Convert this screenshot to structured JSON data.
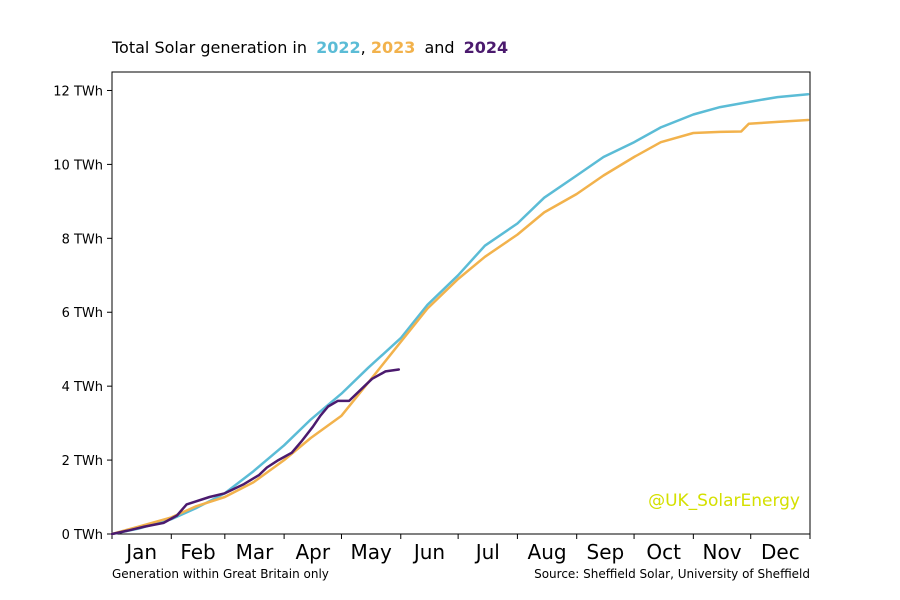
{
  "title": {
    "prefix": "Total Solar generation in",
    "year1": "2022",
    "sep1": ",",
    "year2": "2023",
    "sep2": "and",
    "year3": "2024"
  },
  "footer": {
    "left": "Generation within Great Britain only",
    "right": "Source: Sheffield Solar, University of Sheffield"
  },
  "watermark": "@UK_SolarEnergy",
  "colors": {
    "2022": "#5bbcd6",
    "2023": "#f2b24c",
    "2024": "#4b1a6e",
    "watermark": "#d4e000"
  },
  "chart_data": {
    "type": "line",
    "x_unit": "day of year",
    "xlim": [
      1,
      366
    ],
    "ylim": [
      0,
      12.5
    ],
    "y_ticks": [
      0,
      2,
      4,
      6,
      8,
      10,
      12
    ],
    "y_tick_labels": [
      "0 TWh",
      "2 TWh",
      "4 TWh",
      "6 TWh",
      "8 TWh",
      "10 TWh",
      "12 TWh"
    ],
    "x_tick_labels": [
      "Jan",
      "Feb",
      "Mar",
      "Apr",
      "May",
      "Jun",
      "Jul",
      "Aug",
      "Sep",
      "Oct",
      "Nov",
      "Dec"
    ],
    "series": [
      {
        "name": "2022",
        "x": [
          1,
          15,
          32,
          45,
          60,
          75,
          91,
          105,
          121,
          135,
          152,
          166,
          182,
          196,
          213,
          227,
          244,
          258,
          274,
          288,
          305,
          319,
          335,
          349,
          365
        ],
        "y": [
          0,
          0.15,
          0.4,
          0.7,
          1.1,
          1.7,
          2.4,
          3.1,
          3.8,
          4.5,
          5.3,
          6.2,
          7.0,
          7.8,
          8.4,
          9.1,
          9.7,
          10.2,
          10.6,
          11.0,
          11.35,
          11.55,
          11.7,
          11.82,
          11.9
        ]
      },
      {
        "name": "2023",
        "x": [
          1,
          15,
          32,
          45,
          60,
          75,
          91,
          105,
          121,
          135,
          152,
          166,
          182,
          196,
          213,
          227,
          244,
          258,
          274,
          288,
          305,
          319,
          330,
          334,
          340,
          349,
          365
        ],
        "y": [
          0,
          0.2,
          0.45,
          0.75,
          1.0,
          1.4,
          2.0,
          2.6,
          3.2,
          4.1,
          5.2,
          6.1,
          6.9,
          7.5,
          8.1,
          8.7,
          9.2,
          9.7,
          10.2,
          10.6,
          10.85,
          10.88,
          10.89,
          11.1,
          11.12,
          11.15,
          11.2
        ]
      },
      {
        "name": "2024",
        "x": [
          1,
          10,
          18,
          28,
          35,
          40,
          52,
          60,
          70,
          78,
          82,
          88,
          95,
          100,
          106,
          110,
          114,
          119,
          125,
          133,
          137,
          144,
          151
        ],
        "y": [
          0,
          0.1,
          0.2,
          0.3,
          0.5,
          0.8,
          1.0,
          1.1,
          1.35,
          1.6,
          1.8,
          2.0,
          2.2,
          2.5,
          2.9,
          3.2,
          3.45,
          3.6,
          3.6,
          4.0,
          4.2,
          4.4,
          4.45
        ]
      }
    ]
  }
}
